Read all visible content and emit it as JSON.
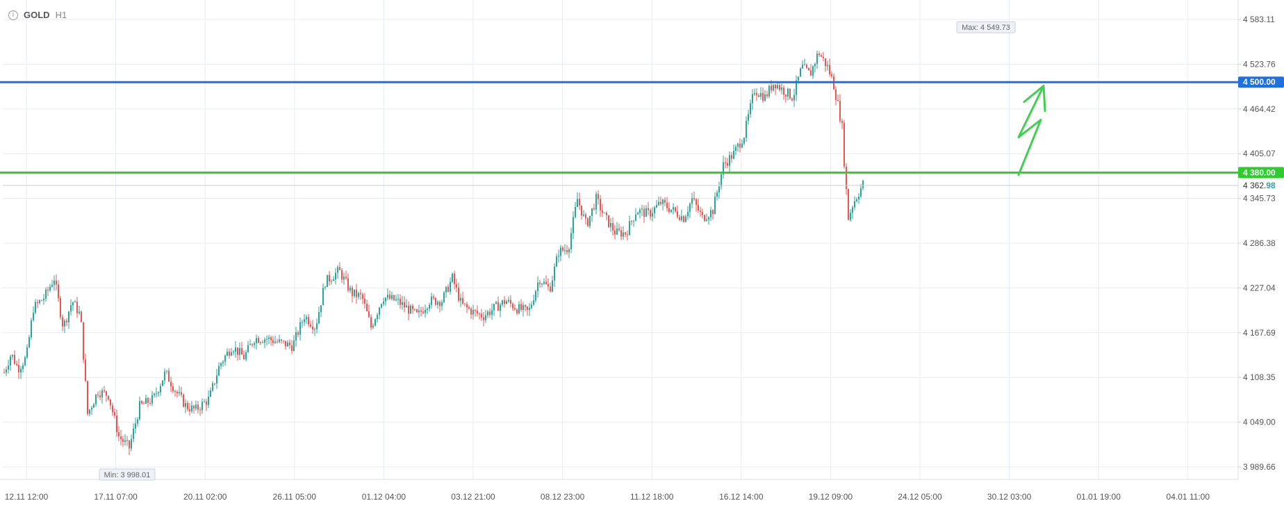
{
  "header": {
    "info_icon": "info-icon",
    "symbol": "GOLD",
    "timeframe": "H1"
  },
  "colors": {
    "up": "#26a69a",
    "down": "#ef5350",
    "resistance_line": "#1e6fe0",
    "support_line": "#2ecc2e",
    "arrow": "#3fd04f",
    "grid": "#e6ecf5",
    "axis_text": "#555555"
  },
  "chart_data": {
    "type": "candlestick",
    "ylim": [
      3960,
      4620
    ],
    "y_ticks": [
      {
        "label": "4 583.11",
        "value": 4583.11
      },
      {
        "label": "4 523.76",
        "value": 4523.76
      },
      {
        "label": "4 464.42",
        "value": 4464.42
      },
      {
        "label": "4 405.07",
        "value": 4405.07
      },
      {
        "label": "4 345.73",
        "value": 4345.73
      },
      {
        "label": "4 286.38",
        "value": 4286.38
      },
      {
        "label": "4 227.04",
        "value": 4227.04
      },
      {
        "label": "4 167.69",
        "value": 4167.69
      },
      {
        "label": "4 108.35",
        "value": 4108.35
      },
      {
        "label": "4 049.00",
        "value": 4049.0
      },
      {
        "label": "3 989.66",
        "value": 3989.66
      }
    ],
    "x_ticks": [
      "12.11 12:00",
      "17.11 07:00",
      "20.11 02:00",
      "26.11 05:00",
      "01.12 04:00",
      "03.12 21:00",
      "08.12 23:00",
      "11.12 18:00",
      "16.12 14:00",
      "19.12 09:00",
      "24.12 05:00",
      "30.12 03:00",
      "01.01 19:00",
      "04.01 11:00"
    ],
    "grid": true,
    "price_keypoints": [
      [
        0,
        4115
      ],
      [
        10,
        4140
      ],
      [
        20,
        4120
      ],
      [
        32,
        4135
      ],
      [
        42,
        4200
      ],
      [
        58,
        4215
      ],
      [
        72,
        4240
      ],
      [
        85,
        4175
      ],
      [
        98,
        4210
      ],
      [
        110,
        4190
      ],
      [
        120,
        4060
      ],
      [
        135,
        4090
      ],
      [
        150,
        4085
      ],
      [
        165,
        4030
      ],
      [
        180,
        4015
      ],
      [
        195,
        4070
      ],
      [
        215,
        4080
      ],
      [
        232,
        4115
      ],
      [
        247,
        4090
      ],
      [
        262,
        4070
      ],
      [
        275,
        4065
      ],
      [
        295,
        4080
      ],
      [
        310,
        4125
      ],
      [
        328,
        4150
      ],
      [
        345,
        4135
      ],
      [
        360,
        4160
      ],
      [
        378,
        4160
      ],
      [
        395,
        4155
      ],
      [
        415,
        4150
      ],
      [
        432,
        4190
      ],
      [
        448,
        4175
      ],
      [
        462,
        4235
      ],
      [
        482,
        4250
      ],
      [
        500,
        4220
      ],
      [
        515,
        4215
      ],
      [
        528,
        4175
      ],
      [
        545,
        4215
      ],
      [
        565,
        4210
      ],
      [
        580,
        4200
      ],
      [
        595,
        4190
      ],
      [
        612,
        4210
      ],
      [
        630,
        4210
      ],
      [
        645,
        4240
      ],
      [
        658,
        4205
      ],
      [
        675,
        4195
      ],
      [
        690,
        4190
      ],
      [
        705,
        4200
      ],
      [
        722,
        4210
      ],
      [
        738,
        4200
      ],
      [
        755,
        4195
      ],
      [
        770,
        4240
      ],
      [
        785,
        4225
      ],
      [
        798,
        4275
      ],
      [
        812,
        4280
      ],
      [
        825,
        4345
      ],
      [
        838,
        4310
      ],
      [
        852,
        4345
      ],
      [
        865,
        4320
      ],
      [
        880,
        4300
      ],
      [
        895,
        4300
      ],
      [
        910,
        4330
      ],
      [
        928,
        4325
      ],
      [
        945,
        4340
      ],
      [
        962,
        4330
      ],
      [
        978,
        4320
      ],
      [
        990,
        4345
      ],
      [
        1005,
        4320
      ],
      [
        1020,
        4330
      ],
      [
        1035,
        4390
      ],
      [
        1050,
        4405
      ],
      [
        1065,
        4430
      ],
      [
        1080,
        4490
      ],
      [
        1095,
        4480
      ],
      [
        1108,
        4500
      ],
      [
        1120,
        4490
      ],
      [
        1135,
        4480
      ],
      [
        1148,
        4520
      ],
      [
        1160,
        4510
      ],
      [
        1172,
        4540
      ],
      [
        1185,
        4520
      ],
      [
        1193,
        4500
      ],
      [
        1200,
        4470
      ],
      [
        1206,
        4440
      ],
      [
        1210,
        4380
      ],
      [
        1215,
        4320
      ],
      [
        1222,
        4340
      ],
      [
        1228,
        4350
      ],
      [
        1236,
        4365
      ]
    ],
    "annotations": {
      "max_label": "Max: 4 549.73",
      "min_label": "Min: 3 998.01",
      "max_value": 4549.73,
      "min_value": 3998.01
    },
    "horizontal_lines": [
      {
        "value": 4500.0,
        "label": "4 500.00",
        "color": "#1e6fe0"
      },
      {
        "value": 4380.0,
        "label": "4 380.00",
        "color": "#2ecc2e"
      }
    ],
    "current_price": {
      "value": 4362.98,
      "label_main": "4 362.",
      "label_accent": "98"
    },
    "forecast_arrow": {
      "points": [
        [
          4377,
          0
        ],
        [
          4450,
          0
        ],
        [
          4427,
          0
        ],
        [
          4495,
          0
        ]
      ]
    }
  }
}
